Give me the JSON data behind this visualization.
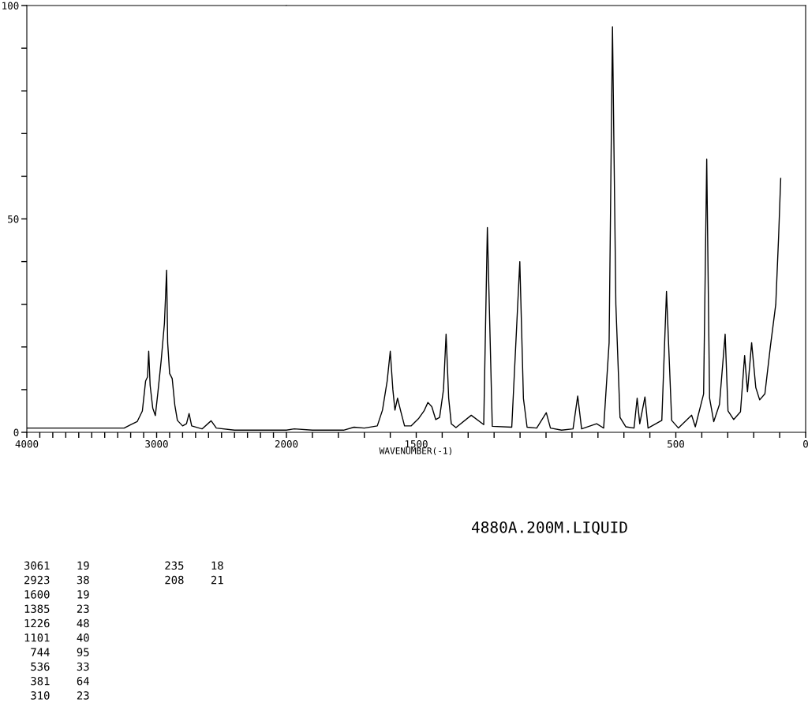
{
  "chart_data": [
    {
      "type": "line",
      "xlim": [
        4000,
        2000
      ],
      "ylim": [
        0,
        100
      ],
      "xticks": [
        4000,
        {
          "value": 3900,
          "label": null
        },
        {
          "value": 3800,
          "label": null
        },
        {
          "value": 3700,
          "label": null
        },
        {
          "value": 3600,
          "label": null
        },
        {
          "value": 3500,
          "label": null
        },
        {
          "value": 3400,
          "label": null
        },
        {
          "value": 3300,
          "label": null
        },
        {
          "value": 3200,
          "label": null
        },
        {
          "value": 3100,
          "label": null
        },
        3000,
        {
          "value": 2900,
          "label": null
        },
        {
          "value": 2800,
          "label": null
        },
        {
          "value": 2700,
          "label": null
        },
        {
          "value": 2600,
          "label": null
        },
        {
          "value": 2500,
          "label": null
        },
        {
          "value": 2400,
          "label": null
        },
        {
          "value": 2300,
          "label": null
        },
        {
          "value": 2200,
          "label": null
        },
        {
          "value": 2100,
          "label": null
        },
        2000
      ],
      "yticks": [
        0,
        {
          "value": 10,
          "label": null
        },
        {
          "value": 20,
          "label": null
        },
        {
          "value": 30,
          "label": null
        },
        {
          "value": 40,
          "label": null
        },
        50,
        {
          "value": 60,
          "label": null
        },
        {
          "value": 70,
          "label": null
        },
        {
          "value": 80,
          "label": null
        },
        {
          "value": 90,
          "label": null
        },
        100
      ],
      "line_style": "solid",
      "series": [
        {
          "color": "#000000",
          "x": [
            4000,
            3250,
            3200,
            3150,
            3110,
            3085,
            3070,
            3061,
            3050,
            3030,
            3010,
            2990,
            2965,
            2940,
            2923,
            2915,
            2900,
            2880,
            2860,
            2840,
            2800,
            2770,
            2750,
            2730,
            2650,
            2580,
            2540,
            2400,
            2000
          ],
          "values": [
            1,
            1,
            1.8,
            2.5,
            5,
            12,
            13,
            19,
            11,
            5.7,
            3.9,
            9.4,
            16.8,
            25.5,
            38,
            21,
            13.8,
            12.6,
            6.4,
            2.8,
            1.5,
            2,
            4.4,
            1.5,
            0.8,
            2.7,
            1,
            0.5,
            0.5
          ]
        }
      ],
      "annotations": [
        "4880A.200M.LIQUID",
        "3061    19",
        "2923    38",
        "1600    19",
        "1385    23",
        "1226    48",
        "1101    40",
        " 744    95",
        " 536    33",
        " 381    64",
        " 310    23",
        " 235    18",
        " 208    21"
      ]
    },
    {
      "type": "line",
      "xlabel": "WAVENUMBER(-1)",
      "xlim": [
        2000,
        0
      ],
      "ylim": [
        0,
        100
      ],
      "tick_labels": "x",
      "xticks": [
        {
          "value": 1900,
          "label": null
        },
        {
          "value": 1800,
          "label": null
        },
        {
          "value": 1700,
          "label": null
        },
        {
          "value": 1600,
          "label": null
        },
        1500,
        {
          "value": 1400,
          "label": null
        },
        {
          "value": 1300,
          "label": null
        },
        {
          "value": 1200,
          "label": null
        },
        {
          "value": 1100,
          "label": null
        },
        {
          "value": 1000,
          "label": null
        },
        {
          "value": 900,
          "label": null
        },
        {
          "value": 800,
          "label": null
        },
        {
          "value": 700,
          "label": null
        },
        {
          "value": 600,
          "label": null
        },
        500,
        {
          "value": 400,
          "label": null
        },
        {
          "value": 300,
          "label": null
        },
        {
          "value": 200,
          "label": null
        },
        {
          "value": 100,
          "label": null
        },
        0
      ],
      "yticks": [
        {
          "value": 0,
          "label": null
        },
        {
          "value": 100,
          "label": null
        }
      ],
      "line_style": "solid",
      "series": [
        {
          "color": "#000000",
          "x": [
            2000,
            1970,
            1900,
            1780,
            1740,
            1700,
            1650,
            1630,
            1612,
            1600,
            1590,
            1582,
            1572,
            1560,
            1545,
            1520,
            1490,
            1470,
            1455,
            1440,
            1425,
            1410,
            1395,
            1385,
            1375,
            1365,
            1347,
            1288,
            1240,
            1226,
            1207,
            1132,
            1101,
            1087,
            1073,
            1036,
            999,
            983,
            940,
            896,
            878,
            863,
            805,
            778,
            757,
            744,
            731,
            715,
            693,
            661,
            649,
            639,
            619,
            607,
            554,
            536,
            516,
            490,
            439,
            425,
            393,
            381,
            370,
            354,
            332,
            310,
            299,
            277,
            251,
            235,
            224,
            208,
            192,
            177,
            157,
            136,
            115,
            104,
            96
          ],
          "values": [
            0.5,
            0.8,
            0.5,
            0.5,
            1.2,
            1,
            1.5,
            5.2,
            12,
            19,
            10,
            5.2,
            8,
            5,
            1.5,
            1.5,
            3.3,
            5,
            7,
            6,
            3,
            3.5,
            10,
            23,
            8,
            2,
            1.1,
            4,
            1.8,
            48,
            1.4,
            1.2,
            40,
            7.9,
            1.2,
            1,
            4.6,
            1,
            0.5,
            0.8,
            8.5,
            0.8,
            2,
            1,
            21,
            95,
            30,
            3.5,
            1.3,
            1,
            8,
            2,
            8.3,
            1,
            2.8,
            33,
            2.8,
            1,
            4,
            1.3,
            9,
            64,
            8,
            2.5,
            6.5,
            23,
            5,
            3,
            4.8,
            18,
            9.5,
            21,
            10.5,
            7.6,
            9,
            20,
            30,
            46,
            59.5
          ]
        }
      ]
    }
  ]
}
